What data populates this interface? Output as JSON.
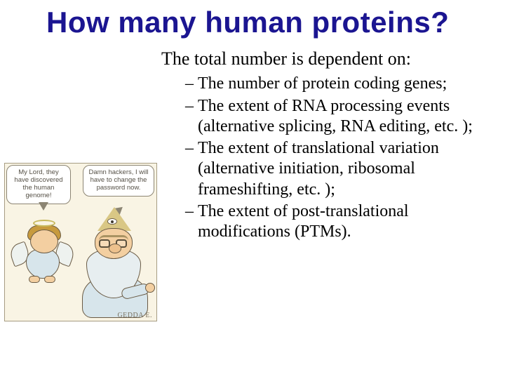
{
  "title": "How many human proteins?",
  "lead": "The total number is dependent on:",
  "bullets": [
    "The number of protein coding genes;",
    "The extent of RNA processing events (alternative splicing, RNA editing, etc. );",
    "The extent of translational variation (alternative initiation, ribosomal frameshifting, etc. );",
    "The extent of post-translational modifications (PTMs)."
  ],
  "cartoon": {
    "speech_left": "My Lord, they have discovered the human genome!",
    "speech_right": "Damn hackers, I will have to change the password now.",
    "signature": "GEDDA E.",
    "bg_color": "#f9f4e4"
  },
  "colors": {
    "title_color": "#1b1591",
    "text_color": "#000000",
    "background": "#ffffff"
  },
  "typography": {
    "title_font": "Impact",
    "title_size_pt": 32,
    "body_font": "Times New Roman",
    "lead_size_pt": 20,
    "bullet_size_pt": 18
  }
}
